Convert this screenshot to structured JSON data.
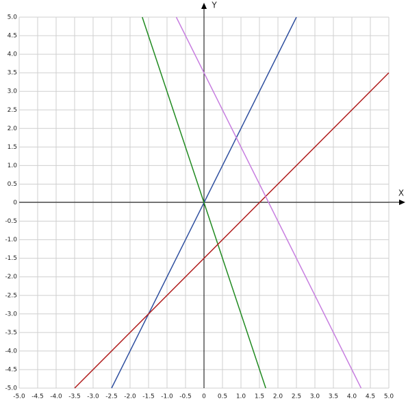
{
  "chart_data": {
    "type": "line",
    "x_label": "X",
    "y_label": "Y",
    "xlim": [
      -5,
      5
    ],
    "ylim": [
      -5,
      5
    ],
    "xticks": [
      {
        "value": -5,
        "label": "-5.0"
      },
      -4.5,
      {
        "value": -4,
        "label": "-4.0"
      },
      -3.5,
      {
        "value": -3,
        "label": "-3.0"
      },
      -2.5,
      {
        "value": -2,
        "label": "-2.0"
      },
      -1.5,
      {
        "value": -1,
        "label": "-1.0"
      },
      -0.5,
      0,
      0.5,
      {
        "value": 1,
        "label": "1.0"
      },
      1.5,
      {
        "value": 2,
        "label": "2.0"
      },
      2.5,
      {
        "value": 3,
        "label": "3.0"
      },
      3.5,
      {
        "value": 4,
        "label": "4.0"
      },
      4.5,
      {
        "value": 5,
        "label": "5.0"
      }
    ],
    "yticks": [
      {
        "value": -5,
        "label": "-5.0"
      },
      -4.5,
      {
        "value": -4,
        "label": "-4.0"
      },
      -3.5,
      {
        "value": -3,
        "label": "-3.0"
      },
      -2.5,
      {
        "value": -2,
        "label": "-2.0"
      },
      -1.5,
      {
        "value": -1,
        "label": "-1.0"
      },
      -0.5,
      0,
      0.5,
      {
        "value": 1,
        "label": "1.0"
      },
      1.5,
      {
        "value": 2,
        "label": "2.0"
      },
      2.5,
      {
        "value": 3,
        "label": "3.0"
      },
      3.5,
      {
        "value": 4,
        "label": "4.0"
      },
      4.5,
      {
        "value": 5,
        "label": "5.0"
      }
    ],
    "grid": true,
    "series": [
      {
        "color": "#2f4f9f",
        "x": [
          -2.5,
          2.5
        ],
        "values": [
          -5,
          5
        ]
      },
      {
        "color": "#1f8a1f",
        "x": [
          -1.67,
          1.67
        ],
        "values": [
          5,
          -5
        ]
      },
      {
        "color": "#b01c1c",
        "x": [
          -3.5,
          5
        ],
        "values": [
          -5,
          3.5
        ]
      },
      {
        "color": "#c77ee0",
        "x": [
          -0.75,
          4.25
        ],
        "values": [
          5,
          -5
        ]
      }
    ]
  }
}
